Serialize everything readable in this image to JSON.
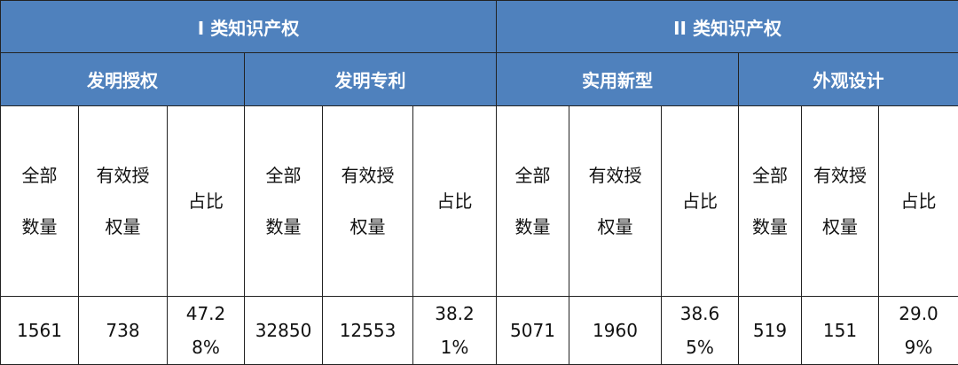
{
  "colors": {
    "header_bg": "#4f81bd",
    "header_text": "#ffffff",
    "border": "#222222"
  },
  "groups": [
    {
      "label": "I 类知识产权",
      "subgroups": [
        {
          "label": "发明授权",
          "values": {
            "total": "1561",
            "valid": "738",
            "ratio": "47.28%"
          }
        },
        {
          "label": "发明专利",
          "values": {
            "total": "32850",
            "valid": "12553",
            "ratio": "38.21%"
          }
        }
      ]
    },
    {
      "label": "II 类知识产权",
      "subgroups": [
        {
          "label": "实用新型",
          "values": {
            "total": "5071",
            "valid": "1960",
            "ratio": "38.65%"
          }
        },
        {
          "label": "外观设计",
          "values": {
            "total": "519",
            "valid": "151",
            "ratio": "29.09%"
          }
        }
      ]
    }
  ],
  "columns": {
    "total": "全部数量",
    "valid": "有效授权量",
    "ratio": "占比"
  }
}
